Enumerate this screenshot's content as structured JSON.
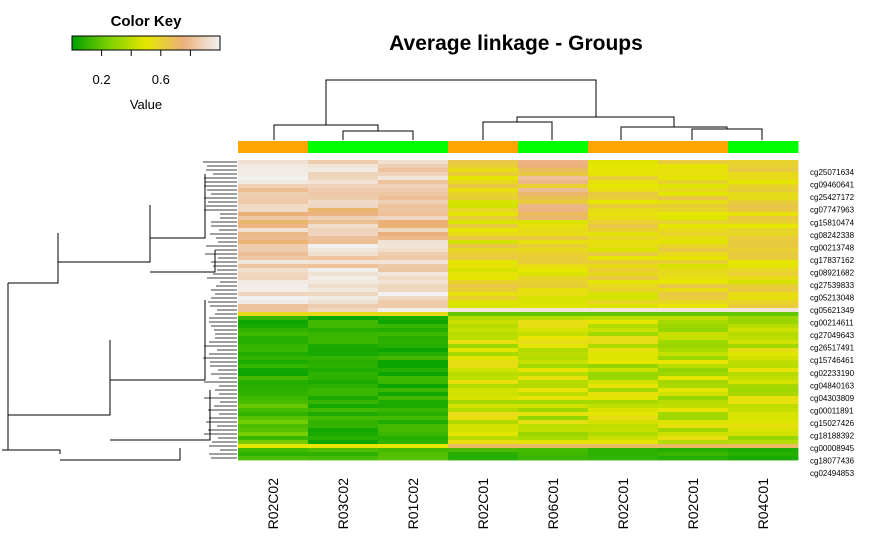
{
  "title": "Average linkage - Groups",
  "color_key": {
    "title": "Color Key",
    "axis_label": "Value",
    "ticks": [
      0.2,
      0.6
    ],
    "tick_labels": [
      "0.2",
      "0.6"
    ],
    "range": [
      0.0,
      1.0
    ],
    "colors": [
      "#00a000",
      "#7dd000",
      "#e6e600",
      "#ebb07a",
      "#f2f2f2"
    ]
  },
  "chart_data": {
    "type": "heatmap",
    "title": "Average linkage - Groups",
    "columns": [
      "R02C02",
      "R03C02",
      "R01C02",
      "R02C01",
      "R06C01",
      "R02C01",
      "R02C01",
      "R04C01"
    ],
    "group_colors": [
      "#ffa500",
      "#00ff00",
      "#00ff00",
      "#ffa500",
      "#00ff00",
      "#ffa500",
      "#ffa500",
      "#00ff00"
    ],
    "row_labels": [
      "cg25071634",
      "cg09460641",
      "cg25427172",
      "cg07747963",
      "cg15810474",
      "cg08242338",
      "cg00213748",
      "cg17837162",
      "cg08921682",
      "cg27539833",
      "cg05213048",
      "cg05621349",
      "cg00214611",
      "cg27049643",
      "cg26517491",
      "cg15746461",
      "cg02233190",
      "cg04840163",
      "cg04303809",
      "cg00011891",
      "cg15027426",
      "cg18188392",
      "cg00008945",
      "cg18077436",
      "cg02494853"
    ],
    "row_count_total": 75,
    "value_range": [
      0,
      1
    ],
    "color_scale": [
      "#00a000",
      "#7dd000",
      "#e6e600",
      "#ebb07a",
      "#f2f2f2"
    ]
  }
}
